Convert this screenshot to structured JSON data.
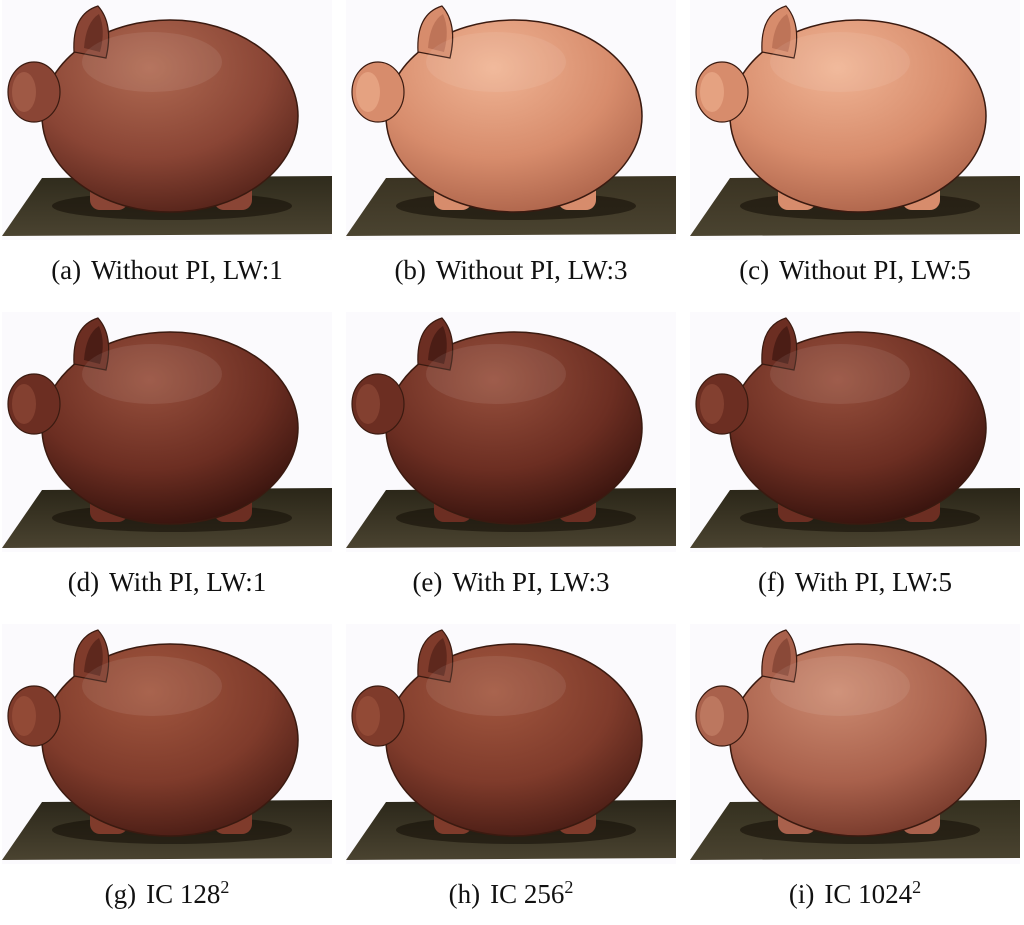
{
  "figure": {
    "panels": [
      {
        "label": "(a)",
        "text": "Without PI, LW:1",
        "exp": "",
        "shade": "dark"
      },
      {
        "label": "(b)",
        "text": "Without PI, LW:3",
        "exp": "",
        "shade": "light"
      },
      {
        "label": "(c)",
        "text": "Without PI, LW:5",
        "exp": "",
        "shade": "light"
      },
      {
        "label": "(d)",
        "text": "With PI, LW:1",
        "exp": "",
        "shade": "darkest"
      },
      {
        "label": "(e)",
        "text": "With PI, LW:3",
        "exp": "",
        "shade": "darkest"
      },
      {
        "label": "(f)",
        "text": "With PI, LW:5",
        "exp": "",
        "shade": "darkest"
      },
      {
        "label": "(g)",
        "text": "IC 128",
        "exp": "2",
        "shade": "darker"
      },
      {
        "label": "(h)",
        "text": "IC 256",
        "exp": "2",
        "shade": "darker"
      },
      {
        "label": "(i)",
        "text": "IC 1024",
        "exp": "2",
        "shade": "medium"
      }
    ],
    "colors": {
      "light": {
        "top": "#f0b494",
        "mid": "#d78c6c",
        "bot": "#a55c44",
        "floor": "#3a3322"
      },
      "dark": {
        "top": "#b06a52",
        "mid": "#8a4535",
        "bot": "#4a1c14",
        "floor": "#2f2b1c"
      },
      "medium": {
        "top": "#cc8a70",
        "mid": "#a9614c",
        "bot": "#6c3124",
        "floor": "#34301f"
      },
      "darker": {
        "top": "#a2573f",
        "mid": "#7f3b2b",
        "bot": "#3e1610",
        "floor": "#2b271a"
      },
      "darkest": {
        "top": "#97503d",
        "mid": "#6c2e22",
        "bot": "#2a0c08",
        "floor": "#2a2618"
      }
    }
  }
}
